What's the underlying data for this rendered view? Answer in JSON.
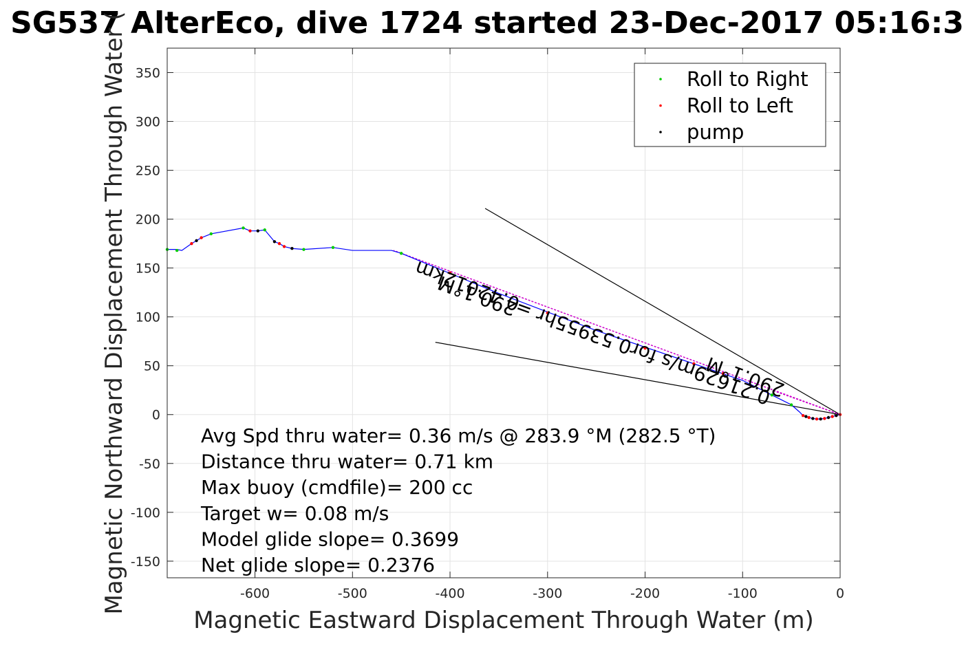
{
  "chart_data": {
    "type": "line",
    "title": "SG537 AlterEco, dive 1724 started 23-Dec-2017 05:16:3",
    "xlabel": "Magnetic Eastward Displacement Through Water (m)",
    "ylabel": "Magnetic Northward Displacement Through Water (",
    "xlim": [
      -690,
      0
    ],
    "ylim": [
      -167,
      375
    ],
    "xticks": [
      -600,
      -500,
      -400,
      -300,
      -200,
      -100,
      0
    ],
    "yticks": [
      -150,
      -100,
      -50,
      0,
      50,
      100,
      150,
      200,
      250,
      300,
      350
    ],
    "grid": true,
    "legend_position": "top-right",
    "legend": [
      {
        "label": "Roll to Right",
        "color": "#00cc00"
      },
      {
        "label": "Roll to Left",
        "color": "#ff0000"
      },
      {
        "label": "pump",
        "color": "#000000"
      }
    ],
    "track": {
      "name": "",
      "color": "#0000ff",
      "x": [
        -690,
        -680,
        -675,
        -665,
        -660,
        -655,
        -650,
        -645,
        -612,
        -605,
        -597,
        -590,
        -580,
        -575,
        -570,
        -562,
        -550,
        -520,
        -500,
        -460,
        -450,
        -350,
        -250,
        -150,
        -100,
        -70,
        -50,
        -42,
        -38,
        -35,
        -32,
        -28,
        -24,
        -20,
        -16,
        -12,
        -8,
        -4,
        0
      ],
      "y": [
        169,
        169,
        168,
        175,
        178,
        181,
        183,
        185,
        191,
        188,
        188,
        189,
        177,
        175,
        172,
        170,
        169,
        171,
        168,
        168,
        165,
        124,
        86,
        52,
        35,
        20,
        10,
        3,
        -1,
        -2,
        -3,
        -4,
        -4.5,
        -4.5,
        -4,
        -3,
        -2,
        -1,
        0
      ]
    },
    "roll_right_points": {
      "x": [
        -690,
        -680,
        -645,
        -612,
        -590,
        -550,
        -520,
        -450,
        -70,
        -50
      ],
      "y": [
        169,
        168,
        185,
        191,
        189,
        169,
        171,
        165,
        20,
        10
      ]
    },
    "roll_left_points": {
      "x": [
        -665,
        -655,
        -605,
        -575,
        -570,
        -400,
        -300,
        -200,
        -150,
        -120,
        -38,
        -32,
        -24,
        -16,
        -8,
        0
      ],
      "y": [
        175,
        181,
        188,
        175,
        172,
        145,
        104,
        68,
        52,
        42,
        -1,
        -3,
        -4.5,
        -4,
        -2,
        0
      ]
    },
    "pump_points": {
      "x": [
        -660,
        -597,
        -580,
        -562,
        -35,
        -28,
        -20,
        -12,
        -4
      ],
      "y": [
        178,
        188,
        177,
        170,
        -2,
        -4,
        -4.5,
        -3,
        -1
      ]
    },
    "wedge_lines": [
      {
        "x": [
          0,
          -364
        ],
        "y": [
          0,
          211
        ]
      },
      {
        "x": [
          0,
          -415
        ],
        "y": [
          0,
          74
        ]
      }
    ],
    "magenta_lines": [
      {
        "x": [
          0,
          -458
        ],
        "y": [
          0,
          168
        ]
      },
      {
        "x": [
          0,
          -70
        ],
        "y": [
          0,
          25
        ]
      }
    ],
    "annotations": [
      {
        "text": "0.42012km",
        "x": -380,
        "y": 138,
        "angle_deg": 200
      },
      {
        "text": "290.1°M",
        "x": -370,
        "y": 128,
        "angle_deg": 200
      },
      {
        "text": "0.21629m/s for0.53955hr =",
        "x": -200,
        "y": 70,
        "angle_deg": 200
      },
      {
        "text": "290.1°M",
        "x": -95,
        "y": 45,
        "angle_deg": 200
      }
    ],
    "stats": [
      "Avg Spd thru water=  0.36 m/s @ 283.9 °M (282.5 °T)",
      "Distance thru water=  0.71 km",
      "Max buoy (cmdfile)= 200 cc",
      "Target w= 0.08 m/s",
      "Model glide slope= 0.3699",
      "Net glide slope= 0.2376"
    ]
  }
}
